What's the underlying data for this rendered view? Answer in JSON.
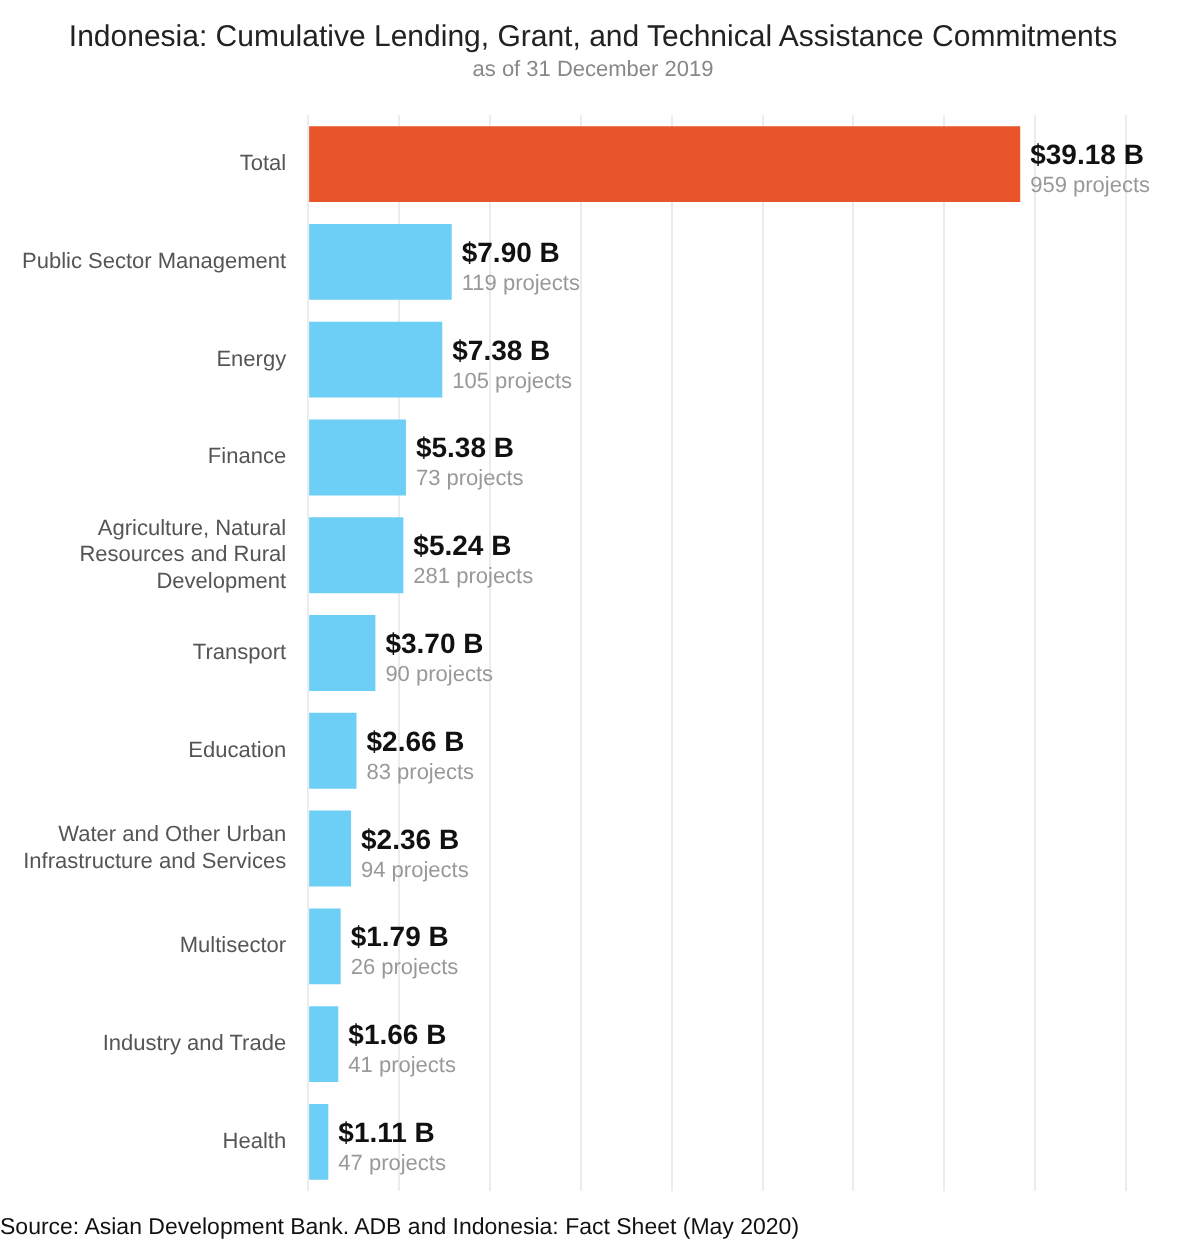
{
  "chart_data": {
    "type": "bar",
    "orientation": "horizontal",
    "title": "Indonesia: Cumulative Lending, Grant, and Technical Assistance Commitments",
    "subtitle": "as of 31 December 2019",
    "categories": [
      "Total",
      "Public Sector Management",
      "Energy",
      "Finance",
      "Agriculture, Natural Resources and Rural Development",
      "Transport",
      "Education",
      "Water and Other Urban Infrastructure and Services",
      "Multisector",
      "Industry and Trade",
      "Health"
    ],
    "values": [
      39.18,
      7.9,
      7.38,
      5.38,
      5.24,
      3.7,
      2.66,
      2.36,
      1.79,
      1.66,
      1.11
    ],
    "colors": [
      "#e8552a",
      "#6dcff6",
      "#6dcff6",
      "#6dcff6",
      "#6dcff6",
      "#6dcff6",
      "#6dcff6",
      "#6dcff6",
      "#6dcff6",
      "#6dcff6",
      "#6dcff6"
    ],
    "value_labels": [
      "$39.18 B\n959 projects",
      "$7.90 B\n119 projects",
      "$7.38 B\n105 projects",
      "$5.38 B\n73 projects",
      "$5.24 B\n281 projects",
      "$3.70 B\n90 projects",
      "$2.66 B\n83 projects",
      "$2.36 B\n94 projects",
      "$1.79 B\n26 projects",
      "$1.66 B\n41 projects",
      "$1.11 B\n47 projects"
    ],
    "xlim": [
      0,
      45
    ],
    "xticks": [
      {
        "value": 0,
        "label": null
      },
      {
        "value": 5,
        "label": null
      },
      {
        "value": 10,
        "label": null
      },
      {
        "value": 15,
        "label": null
      },
      {
        "value": 20,
        "label": null
      },
      {
        "value": 25,
        "label": null
      },
      {
        "value": 30,
        "label": null
      },
      {
        "value": 35,
        "label": null
      },
      {
        "value": 40,
        "label": null
      },
      {
        "value": 45,
        "label": null
      }
    ],
    "grid": "x",
    "tick_labels": "y",
    "legend": false,
    "annotations": [
      "Source: Asian Development Bank. ADB and Indonesia: Fact Sheet (May 2020)"
    ]
  }
}
